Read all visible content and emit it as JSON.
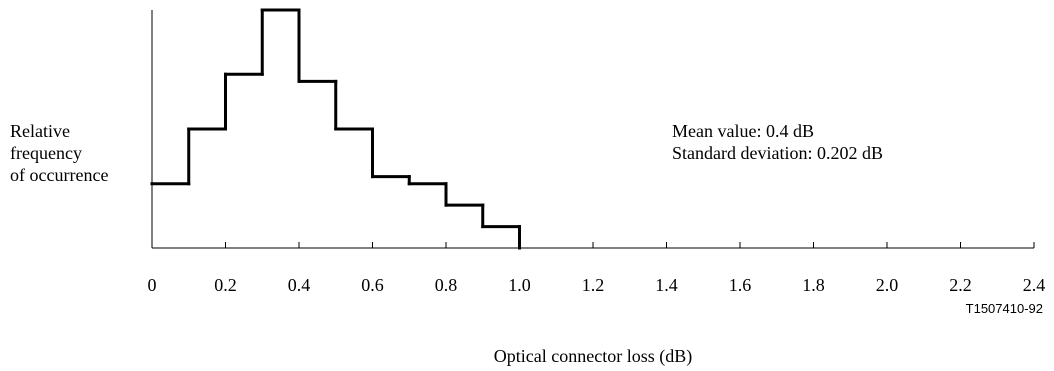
{
  "chart_data": {
    "type": "line",
    "subtype": "step-histogram",
    "title": "",
    "xlabel": "Optical connector loss (dB)",
    "ylabel_lines": [
      "Relative",
      "frequency",
      "of occurrence"
    ],
    "xlim": [
      0,
      2.4
    ],
    "x_ticks": [
      0,
      0.2,
      0.4,
      0.6,
      0.8,
      1.0,
      1.2,
      1.4,
      1.6,
      1.8,
      2.0,
      2.2,
      2.4
    ],
    "x_tick_labels": [
      "0",
      "0.2",
      "0.4",
      "0.6",
      "0.8",
      "1.0",
      "1.2",
      "1.4",
      "1.6",
      "1.8",
      "2.0",
      "2.2",
      "2.4"
    ],
    "bin_edges": [
      0,
      0.1,
      0.2,
      0.3,
      0.4,
      0.5,
      0.6,
      0.7,
      0.8,
      0.9,
      1.0
    ],
    "values": [
      0.27,
      0.5,
      0.73,
      1.0,
      0.7,
      0.5,
      0.3,
      0.27,
      0.18,
      0.09
    ],
    "ylim": [
      0,
      1.0
    ],
    "annotations": [
      "Mean value: 0.4 dB",
      "Standard deviation: 0.202 dB"
    ],
    "figure_id": "T1507410-92",
    "grid": false,
    "legend": false
  }
}
